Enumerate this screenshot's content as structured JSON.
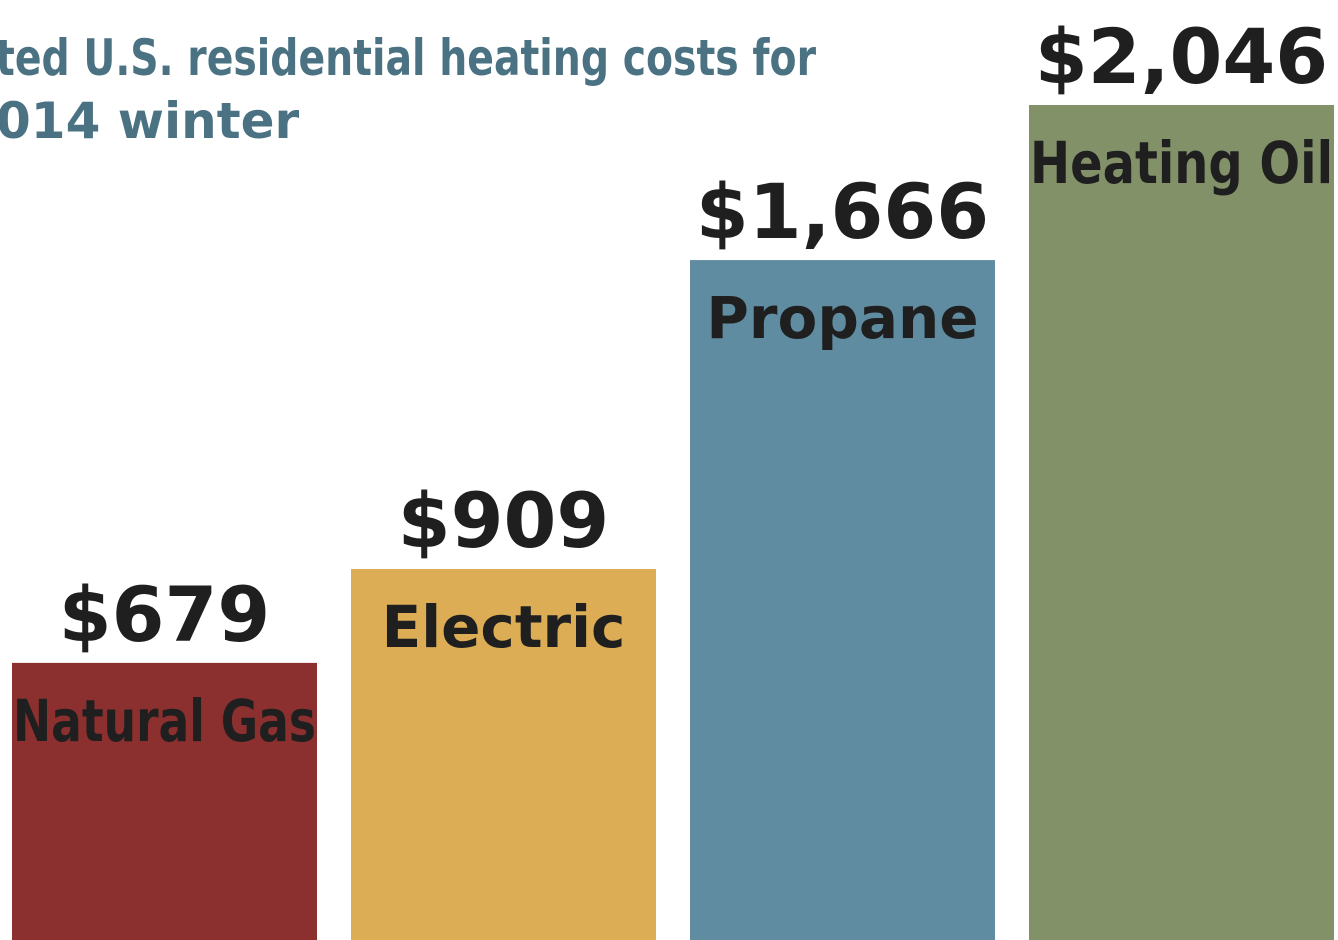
{
  "chart_data": {
    "type": "bar",
    "title": [
      "ted U.S. residential heating costs for",
      "014 winter"
    ],
    "categories": [
      "Natural Gas",
      "Electric",
      "Propane",
      "Heating Oil"
    ],
    "values": [
      679,
      909,
      1666,
      2046
    ],
    "value_labels": [
      "$679",
      "$909",
      "$1,666",
      "$2,046"
    ],
    "colors": [
      "#8b2f2f",
      "#ddad56",
      "#5f8ca1",
      "#839169"
    ]
  }
}
